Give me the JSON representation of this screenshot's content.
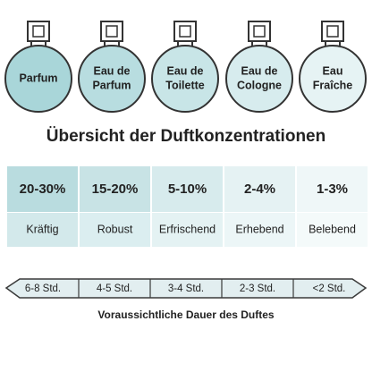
{
  "bottles": [
    {
      "lines": [
        "Parfum"
      ]
    },
    {
      "lines": [
        "Eau de",
        "Parfum"
      ]
    },
    {
      "lines": [
        "Eau de",
        "Toilette"
      ]
    },
    {
      "lines": [
        "Eau de",
        "Cologne"
      ]
    },
    {
      "lines": [
        "Eau",
        "Fraîche"
      ]
    }
  ],
  "title": "Übersicht der Duftkonzentrationen",
  "table": {
    "columns": [
      {
        "concentration": "20-30%",
        "character": "Kräftig"
      },
      {
        "concentration": "15-20%",
        "character": "Robust"
      },
      {
        "concentration": "5-10%",
        "character": "Erfrischend"
      },
      {
        "concentration": "2-4%",
        "character": "Erhebend"
      },
      {
        "concentration": "1-3%",
        "character": "Belebend"
      }
    ]
  },
  "durations": [
    "6-8 Std.",
    "4-5 Std.",
    "3-4 Std.",
    "2-3 Std.",
    "<2 Std."
  ],
  "caption": "Voraussichtliche Dauer des Duftes"
}
